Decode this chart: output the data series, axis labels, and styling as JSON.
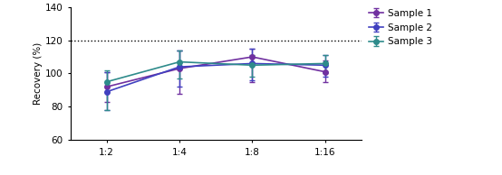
{
  "x_labels": [
    "1:2",
    "1:4",
    "1:8",
    "1:16"
  ],
  "x_values": [
    0,
    1,
    2,
    3
  ],
  "samples": [
    {
      "name": "Sample 1",
      "color": "#7030a0",
      "marker": "o",
      "y": [
        92,
        103,
        110,
        101
      ],
      "yerr_low": [
        9,
        15,
        15,
        6
      ],
      "yerr_high": [
        9,
        11,
        5,
        7
      ]
    },
    {
      "name": "Sample 2",
      "color": "#4040c0",
      "marker": "o",
      "y": [
        89,
        104,
        106,
        105
      ],
      "yerr_low": [
        11,
        12,
        10,
        7
      ],
      "yerr_high": [
        12,
        10,
        9,
        6
      ]
    },
    {
      "name": "Sample 3",
      "color": "#2e8b8b",
      "marker": "o",
      "y": [
        95,
        107,
        105,
        106
      ],
      "yerr_low": [
        17,
        10,
        7,
        6
      ],
      "yerr_high": [
        7,
        7,
        6,
        5
      ]
    }
  ],
  "ylim": [
    60,
    140
  ],
  "yticks": [
    60,
    80,
    100,
    120,
    140
  ],
  "ylabel": "Recovery (%)",
  "hline_y": 120,
  "background_color": "#ffffff",
  "marker_size": 4,
  "linewidth": 1.2,
  "capsize": 2,
  "elinewidth": 1.0
}
